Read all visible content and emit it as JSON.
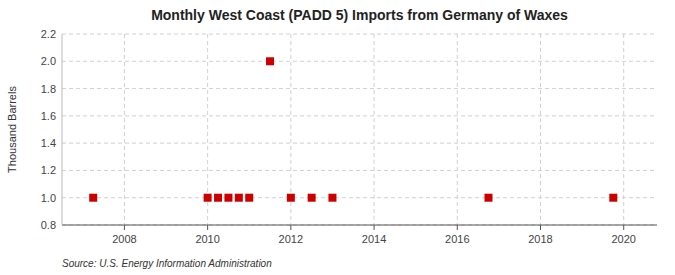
{
  "chart_data": {
    "type": "scatter",
    "title": "Monthly West Coast (PADD 5) Imports from Germany of Waxes",
    "y_label": "Thousand Barrels",
    "source": "Source: U.S. Energy Information Administration",
    "x": [
      2007.25,
      2010.0,
      2010.25,
      2010.5,
      2010.75,
      2011.0,
      2011.5,
      2012.0,
      2012.5,
      2013.0,
      2016.75,
      2019.75
    ],
    "values": [
      1.0,
      1.0,
      1.0,
      1.0,
      1.0,
      1.0,
      2.0,
      1.0,
      1.0,
      1.0,
      1.0,
      1.0
    ],
    "color": "#cc0000",
    "marker": "square",
    "xlim": [
      2006.5,
      2020.8
    ],
    "ylim": [
      0.8,
      2.2
    ],
    "xticks": [
      2008,
      2010,
      2012,
      2014,
      2016,
      2018,
      2020
    ],
    "yticks": [
      0.8,
      {
        "value": 1.0,
        "label": "1.0"
      },
      1.2,
      1.4,
      1.6,
      1.8,
      {
        "value": 2.0,
        "label": "2.0"
      },
      2.2
    ],
    "grid": true
  }
}
